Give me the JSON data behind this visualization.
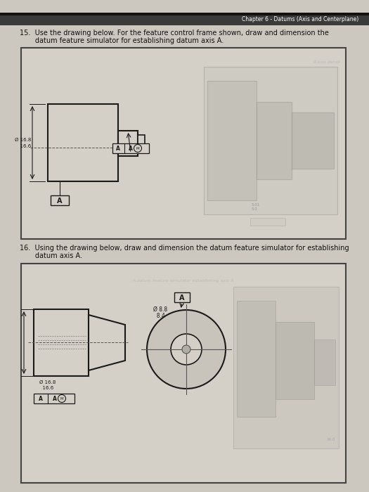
{
  "page_bg": "#ccc8c0",
  "header_text": "Chapter 6 - Datums (Axis and Centerplane)",
  "header_bg": "#3a3a3a",
  "header_line_bg": "#1a1a1a",
  "q15_text1": "15.  Use the drawing below. For the feature control frame shown, draw and dimension the",
  "q15_text2": "       datum feature simulator for establishing datum axis A.",
  "q16_text1": "16.  Using the drawing below, draw and dimension the datum feature simulator for establishing",
  "q16_text2": "       datum axis A.",
  "drawing_bg": "#d4d0c8",
  "drawing_border": "#444444",
  "part_bg": "#d4d0c8",
  "line_col": "#1a1a1a",
  "dim_col": "#222222",
  "dash_col": "#555555",
  "faint_col": "#aaaaaa",
  "gray_part": "#b8b4ac",
  "gray_part2": "#c8c4bc"
}
